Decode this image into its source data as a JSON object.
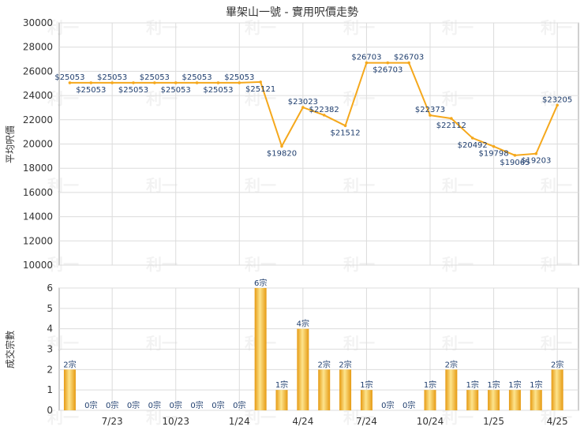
{
  "title": "畢架山一號 - 實用呎價走勢",
  "watermark": "利一",
  "colors": {
    "line": "#f5a81c",
    "grid": "#dcdcdc",
    "frame": "#a0a0a0",
    "text": "#333333",
    "value_label": "#1f3e6e",
    "bar_light": "#fde48c",
    "bar_dark": "#e69a12"
  },
  "chart_data": [
    {
      "type": "line",
      "ylabel": "平均呎價",
      "ylim": [
        10000,
        30000
      ],
      "yticks": [
        "10000",
        "12000",
        "14000",
        "16000",
        "18000",
        "20000",
        "22000",
        "24000",
        "26000",
        "28000",
        "30000"
      ],
      "x_tick_labels": [
        "7/23",
        "10/23",
        "1/24",
        "4/24",
        "7/24",
        "10/24",
        "1/25",
        "4/25"
      ],
      "x_tick_index": [
        2,
        5,
        8,
        11,
        14,
        17,
        20,
        23
      ],
      "labels": [
        "$25053",
        "$25053",
        "$25053",
        "$25053",
        "$25053",
        "$25053",
        "$25053",
        "$25053",
        "$25053",
        "$25121",
        "$19820",
        "$23023",
        "$22382",
        "$21512",
        "$26703",
        "$26703",
        "$26703",
        "$22373",
        "$22112",
        "$20492",
        "$19798",
        "$19065",
        "$19203",
        "$23205"
      ],
      "values": [
        25053,
        25053,
        25053,
        25053,
        25053,
        25053,
        25053,
        25053,
        25053,
        25121,
        19820,
        23023,
        22382,
        21512,
        26703,
        26703,
        26703,
        22373,
        22112,
        20492,
        19798,
        19065,
        19203,
        23205
      ],
      "label_pos": [
        "above",
        "below",
        "above",
        "below",
        "above",
        "below",
        "above",
        "below",
        "above",
        "below",
        "below",
        "above",
        "above",
        "below",
        "above",
        "below",
        "above",
        "above",
        "below",
        "below",
        "below",
        "below",
        "below",
        "above"
      ]
    },
    {
      "type": "bar",
      "ylabel": "成交宗數",
      "ylim": [
        0,
        6
      ],
      "yticks": [
        "0",
        "1",
        "2",
        "3",
        "4",
        "5",
        "6"
      ],
      "labels": [
        "2宗",
        "0宗",
        "0宗",
        "0宗",
        "0宗",
        "0宗",
        "0宗",
        "0宗",
        "0宗",
        "6宗",
        "1宗",
        "4宗",
        "2宗",
        "2宗",
        "1宗",
        "0宗",
        "0宗",
        "1宗",
        "2宗",
        "1宗",
        "1宗",
        "1宗",
        "1宗",
        "2宗"
      ],
      "values": [
        2,
        0,
        0,
        0,
        0,
        0,
        0,
        0,
        0,
        6,
        1,
        4,
        2,
        2,
        1,
        0,
        0,
        1,
        2,
        1,
        1,
        1,
        1,
        2
      ]
    }
  ]
}
